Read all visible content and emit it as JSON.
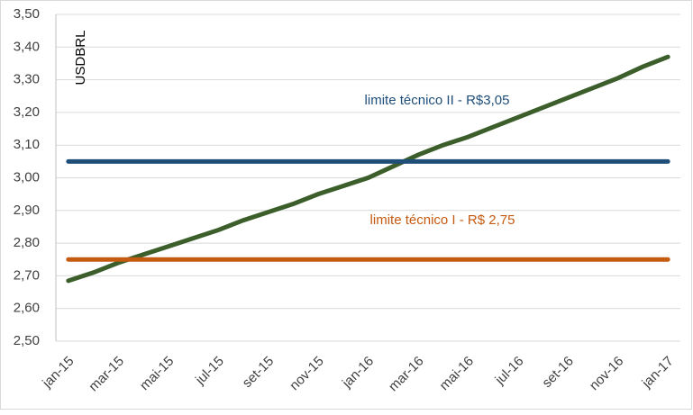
{
  "chart_data": {
    "type": "line",
    "categories": [
      "jan-15",
      null,
      "mar-15",
      null,
      "mai-15",
      null,
      "jul-15",
      null,
      "set-15",
      null,
      "nov-15",
      null,
      "jan-16",
      null,
      "mar-16",
      null,
      "mai-16",
      null,
      "jul-16",
      null,
      "set-16",
      null,
      "nov-16",
      null,
      "jan-17"
    ],
    "series": [
      {
        "name": "USDBRL",
        "color": "#3b5e2b",
        "values": [
          2.685,
          2.71,
          2.74,
          2.765,
          2.79,
          2.815,
          2.84,
          2.87,
          2.895,
          2.92,
          2.95,
          2.975,
          3.0,
          3.035,
          3.07,
          3.1,
          3.125,
          3.155,
          3.185,
          3.215,
          3.245,
          3.275,
          3.305,
          3.34,
          3.37
        ]
      },
      {
        "name": "limite técnico II - R$3,05",
        "color": "#1f4e79",
        "values": [
          3.05,
          3.05,
          3.05,
          3.05,
          3.05,
          3.05,
          3.05,
          3.05,
          3.05,
          3.05,
          3.05,
          3.05,
          3.05,
          3.05,
          3.05,
          3.05,
          3.05,
          3.05,
          3.05,
          3.05,
          3.05,
          3.05,
          3.05,
          3.05,
          3.05
        ]
      },
      {
        "name": "limite técnico I - R$ 2,75",
        "color": "#c55a11",
        "values": [
          2.75,
          2.75,
          2.75,
          2.75,
          2.75,
          2.75,
          2.75,
          2.75,
          2.75,
          2.75,
          2.75,
          2.75,
          2.75,
          2.75,
          2.75,
          2.75,
          2.75,
          2.75,
          2.75,
          2.75,
          2.75,
          2.75,
          2.75,
          2.75,
          2.75
        ]
      }
    ],
    "ylim": [
      2.5,
      3.5
    ],
    "yticks": [
      {
        "value": 2.5,
        "label": "2,50"
      },
      {
        "value": 2.6,
        "label": "2,60"
      },
      {
        "value": 2.7,
        "label": "2,70"
      },
      {
        "value": 2.8,
        "label": "2,80"
      },
      {
        "value": 2.9,
        "label": "2,90"
      },
      {
        "value": 3.0,
        "label": "3,00"
      },
      {
        "value": 3.1,
        "label": "3,10"
      },
      {
        "value": 3.2,
        "label": "3,20"
      },
      {
        "value": 3.3,
        "label": "3,30"
      },
      {
        "value": 3.4,
        "label": "3,40"
      },
      {
        "value": 3.5,
        "label": "3,50"
      }
    ],
    "grid": true
  }
}
